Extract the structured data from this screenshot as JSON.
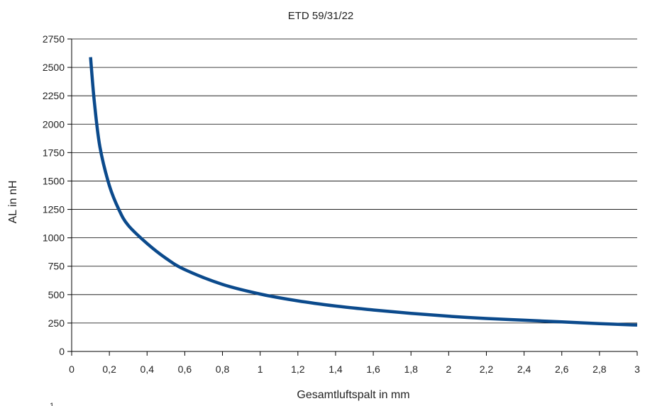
{
  "chart_data": {
    "type": "line",
    "title": "ETD 59/31/22",
    "xlabel": "Gesamtluftspalt in mm",
    "ylabel": "AL in nH",
    "xlim": [
      0,
      3
    ],
    "ylim": [
      0,
      2750
    ],
    "x_ticks": [
      0,
      0.2,
      0.4,
      0.6,
      0.8,
      1,
      1.2,
      1.4,
      1.6,
      1.8,
      2,
      2.2,
      2.4,
      2.6,
      2.8,
      3
    ],
    "x_tick_labels": [
      "0",
      "0,2",
      "0,4",
      "0,6",
      "0,8",
      "1",
      "1,2",
      "1,4",
      "1,6",
      "1,8",
      "2",
      "2,2",
      "2,4",
      "2,6",
      "2,8",
      "3"
    ],
    "y_ticks": [
      0,
      250,
      500,
      750,
      1000,
      1250,
      1500,
      1750,
      2000,
      2250,
      2500,
      2750
    ],
    "y_tick_labels": [
      "0",
      "250",
      "500",
      "750",
      "1000",
      "1250",
      "1500",
      "1750",
      "2000",
      "2250",
      "2500",
      "2750"
    ],
    "grid": "horizontal",
    "line_color": "#0b4a8c",
    "series": [
      {
        "name": "",
        "x": [
          0.1,
          0.12,
          0.15,
          0.2,
          0.25,
          0.3,
          0.4,
          0.5,
          0.6,
          0.8,
          1.0,
          1.2,
          1.4,
          1.6,
          1.8,
          2.0,
          2.2,
          2.4,
          2.6,
          2.8,
          3.0
        ],
        "y": [
          2590,
          2200,
          1800,
          1460,
          1250,
          1110,
          950,
          820,
          720,
          590,
          505,
          445,
          400,
          365,
          335,
          310,
          290,
          275,
          260,
          245,
          232
        ]
      }
    ],
    "footnote": "1"
  }
}
